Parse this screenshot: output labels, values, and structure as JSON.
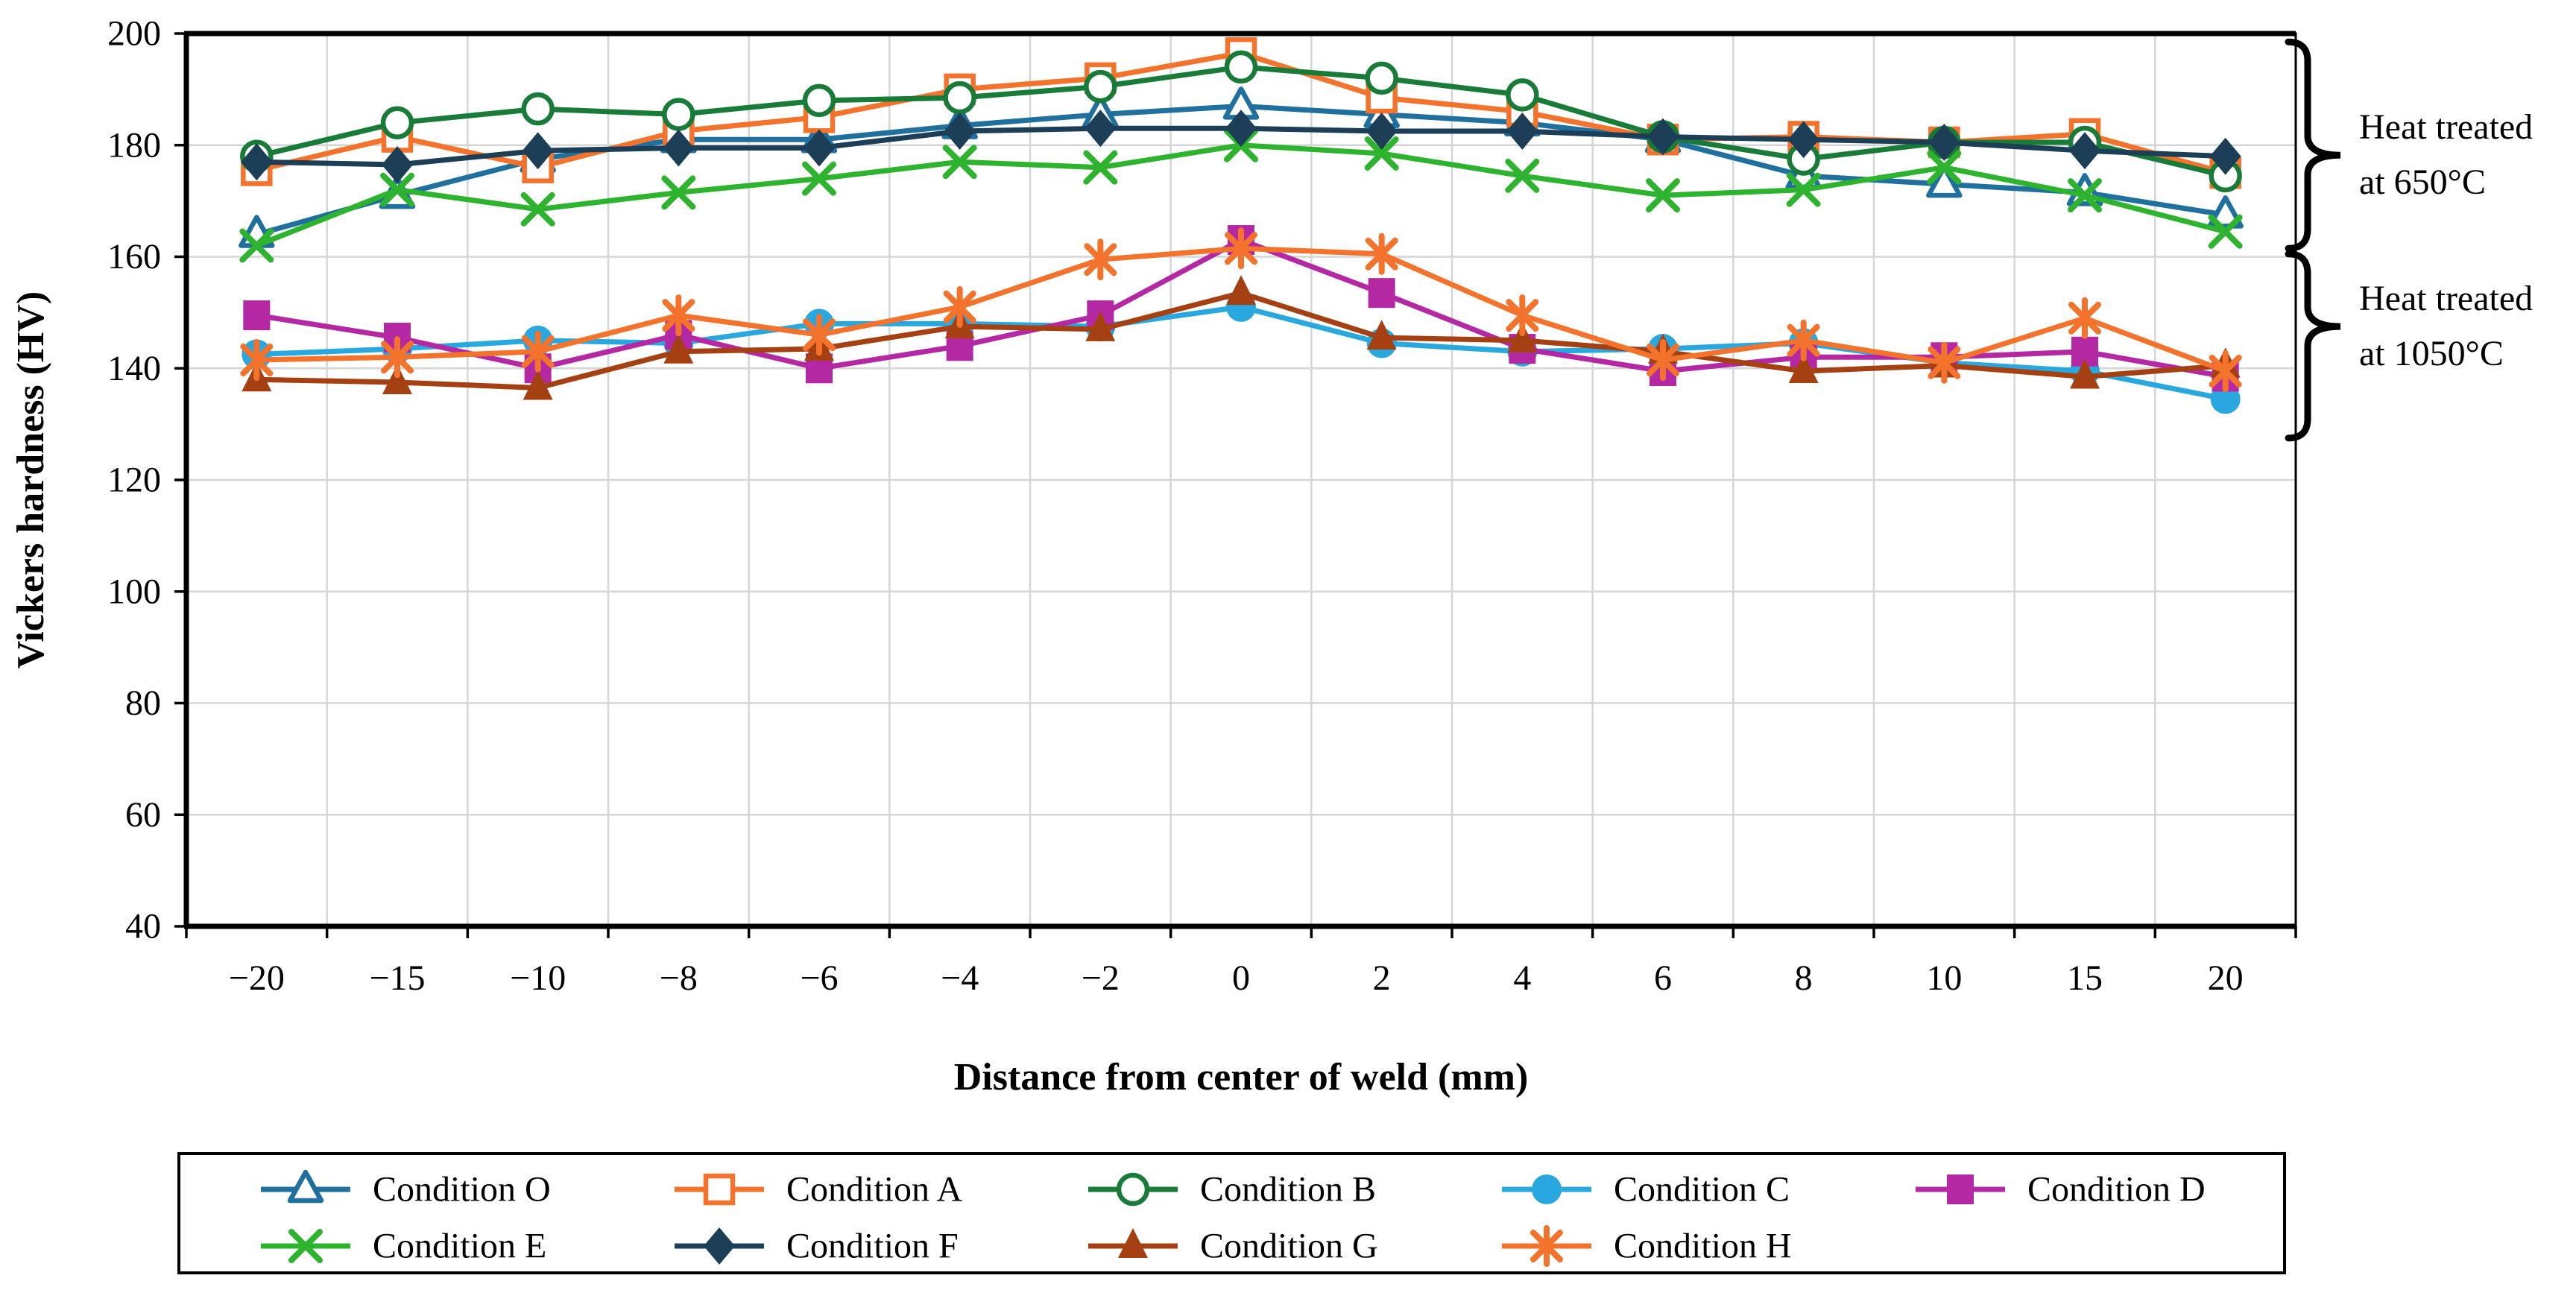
{
  "chart_data": {
    "type": "line",
    "title": "",
    "xlabel": "Distance from center of weld (mm)",
    "ylabel": "Vickers hardness (HV)",
    "x_categories": [
      "−20",
      "−15",
      "−10",
      "−8",
      "−6",
      "−4",
      "−2",
      "0",
      "2",
      "4",
      "6",
      "8",
      "10",
      "15",
      "20"
    ],
    "ylim": [
      40,
      200
    ],
    "yticks": [
      40,
      60,
      80,
      100,
      120,
      140,
      160,
      180,
      200
    ],
    "grid": true,
    "legend_position": "bottom",
    "series": [
      {
        "name": "Condition O",
        "color": "#1F6F9F",
        "marker": "triangle-open",
        "values": [
          164,
          171,
          177.5,
          181,
          181,
          183.5,
          185.5,
          187,
          185.5,
          184,
          181,
          174.5,
          173,
          171.5,
          167.5
        ]
      },
      {
        "name": "Condition A",
        "color": "#F4732C",
        "marker": "square-open",
        "values": [
          175.5,
          181.5,
          176,
          182.5,
          185,
          190,
          192,
          196.5,
          188.5,
          186,
          181,
          181.5,
          180.5,
          182,
          175
        ]
      },
      {
        "name": "Condition B",
        "color": "#187B38",
        "marker": "circle-open",
        "values": [
          178,
          184,
          186.5,
          185.5,
          188,
          188.5,
          190.5,
          194,
          192,
          189,
          181.5,
          177.5,
          180.5,
          180.5,
          174.5
        ]
      },
      {
        "name": "Condition C",
        "color": "#29A8DF",
        "marker": "circle-filled",
        "values": [
          142.5,
          143.5,
          145,
          144.5,
          148,
          148,
          147.5,
          151,
          144.5,
          143,
          143.5,
          144.5,
          141,
          139.5,
          134.5
        ]
      },
      {
        "name": "Condition D",
        "color": "#B428A4",
        "marker": "square-filled",
        "values": [
          149.5,
          145.5,
          140,
          146,
          140,
          144,
          149.5,
          163,
          153.5,
          143.5,
          139.5,
          142,
          142,
          143,
          138.5
        ]
      },
      {
        "name": "Condition E",
        "color": "#2DB32D",
        "marker": "x",
        "values": [
          162,
          172,
          168.5,
          171.5,
          174,
          177,
          176,
          180,
          178.5,
          174.5,
          171,
          172,
          176,
          171,
          164.5
        ]
      },
      {
        "name": "Condition F",
        "color": "#1C3E56",
        "marker": "diamond-filled",
        "values": [
          177,
          176.5,
          179,
          179.5,
          179.5,
          182.5,
          183,
          183,
          182.5,
          182.5,
          181.5,
          181,
          180.5,
          179,
          178
        ]
      },
      {
        "name": "Condition G",
        "color": "#A54012",
        "marker": "triangle-filled",
        "values": [
          138,
          137.5,
          136.5,
          143,
          143.5,
          147.5,
          147,
          153.5,
          145.5,
          145,
          143,
          139.5,
          140.5,
          138.5,
          140.5
        ]
      },
      {
        "name": "Condition H",
        "color": "#F4732C",
        "marker": "asterisk",
        "values": [
          141.5,
          142,
          143,
          149.5,
          146,
          151,
          159.5,
          161.5,
          160.5,
          149.5,
          141.5,
          145,
          141,
          149,
          139.5
        ]
      }
    ],
    "annotations": [
      {
        "lines": [
          "Heat treated",
          "at 650°C"
        ],
        "hv_from": 198.5,
        "hv_to": 161.5,
        "cusp_hv": 178.2
      },
      {
        "lines": [
          "Heat treated",
          "at 1050°C"
        ],
        "hv_from": 160.5,
        "hv_to": 127.5,
        "cusp_hv": 147.5
      }
    ]
  }
}
